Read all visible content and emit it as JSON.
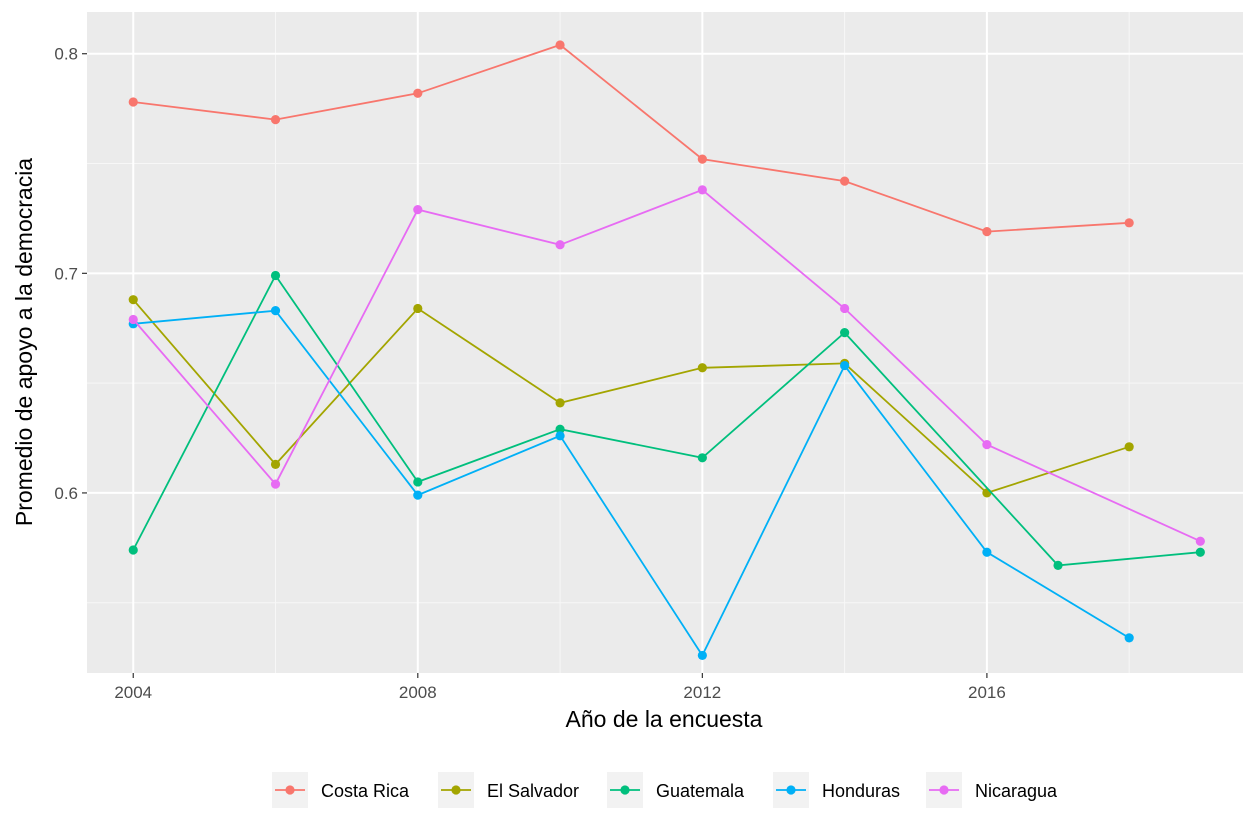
{
  "chart_data": {
    "type": "line",
    "title": "",
    "xlabel": "Año de la encuesta",
    "ylabel": "Promedio de apoyo a la democracia",
    "xlim": [
      2003.35,
      2019.6
    ],
    "ylim": [
      0.518,
      0.819
    ],
    "x_ticks": [
      2004,
      2008,
      2012,
      2016
    ],
    "y_ticks": [
      0.6,
      0.7,
      0.8
    ],
    "y_tick_labels": [
      "0.6",
      "0.7",
      "0.8"
    ],
    "grid": true,
    "legend_position": "bottom",
    "series": [
      {
        "name": "Costa Rica",
        "color": "#F8766D",
        "x": [
          2004,
          2006,
          2008,
          2010,
          2012,
          2014,
          2016,
          2018
        ],
        "y": [
          0.778,
          0.77,
          0.782,
          0.804,
          0.752,
          0.742,
          0.719,
          0.723
        ]
      },
      {
        "name": "El Salvador",
        "color": "#A3A500",
        "x": [
          2004,
          2006,
          2008,
          2010,
          2012,
          2014,
          2016,
          2018
        ],
        "y": [
          0.688,
          0.613,
          0.684,
          0.641,
          0.657,
          0.659,
          0.6,
          0.621
        ]
      },
      {
        "name": "Guatemala",
        "color": "#00BF7D",
        "x": [
          2004,
          2006,
          2008,
          2010,
          2012,
          2014,
          2017,
          2019
        ],
        "y": [
          0.574,
          0.699,
          0.605,
          0.629,
          0.616,
          0.673,
          0.567,
          0.573
        ]
      },
      {
        "name": "Honduras",
        "color": "#00B0F6",
        "x": [
          2004,
          2006,
          2008,
          2010,
          2012,
          2014,
          2016,
          2018
        ],
        "y": [
          0.677,
          0.683,
          0.599,
          0.626,
          0.526,
          0.658,
          0.573,
          0.534
        ]
      },
      {
        "name": "Nicaragua",
        "color": "#E76BF3",
        "x": [
          2004,
          2006,
          2008,
          2010,
          2012,
          2014,
          2016,
          2019
        ],
        "y": [
          0.679,
          0.604,
          0.729,
          0.713,
          0.738,
          0.684,
          0.622,
          0.578
        ]
      }
    ]
  }
}
